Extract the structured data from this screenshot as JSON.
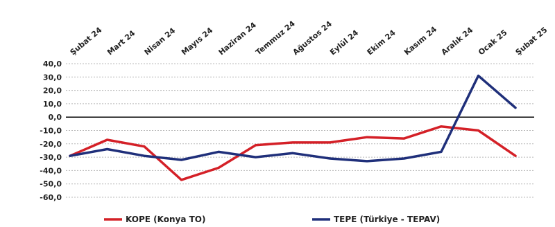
{
  "chart_data": {
    "type": "line",
    "categories": [
      "Şubat 24",
      "Mart 24",
      "Nisan 24",
      "Mayıs 24",
      "Haziran 24",
      "Temmuz 24",
      "Ağustos 24",
      "Eylül 24",
      "Ekim 24",
      "Kasım 24",
      "Aralık 24",
      "Ocak 25",
      "Şubat 25"
    ],
    "series": [
      {
        "name": "KOPE (Konya TO)",
        "color": "#d42027",
        "values": [
          -29,
          -17,
          -22,
          -47,
          -38,
          -21,
          -19,
          -19,
          -15,
          -16,
          -7,
          -10,
          -29
        ]
      },
      {
        "name": "TEPE (Türkiye - TEPAV)",
        "color": "#1f2f7a",
        "values": [
          -29,
          -24,
          -29,
          -32,
          -26,
          -30,
          -27,
          -31,
          -33,
          -31,
          -26,
          31,
          7
        ]
      }
    ],
    "yticks": [
      "40,0",
      "30,0",
      "20,0",
      "10,0",
      "0,0",
      "-10,0",
      "-20,0",
      "-30,0",
      "-40,0",
      "-50,0",
      "-60,0"
    ],
    "ylim": [
      -60,
      40
    ],
    "grid": "horizontal dashed",
    "legend_position": "bottom"
  }
}
